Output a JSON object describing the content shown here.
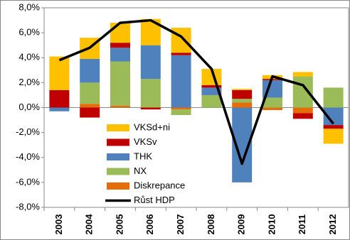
{
  "chart_data": {
    "type": "bar",
    "stacked": true,
    "categories": [
      "2003",
      "2004",
      "2005",
      "2006",
      "2007",
      "2008",
      "2009",
      "2010",
      "2011",
      "2012"
    ],
    "series": [
      {
        "name": "VKSd+ni",
        "color": "#FFC000",
        "values": [
          2.7,
          1.7,
          1.6,
          2.1,
          2.0,
          1.3,
          0.1,
          0.3,
          0.35,
          -1.2
        ]
      },
      {
        "name": "VKSv",
        "color": "#C00000",
        "values": [
          1.4,
          -0.8,
          0.4,
          -0.15,
          0.2,
          0.2,
          0.7,
          0.1,
          -0.45,
          -0.3
        ]
      },
      {
        "name": "THK",
        "color": "#4F81BD",
        "values": [
          -0.3,
          1.9,
          1.1,
          2.7,
          4.2,
          0.6,
          -6.0,
          1.4,
          0.0,
          -1.4
        ]
      },
      {
        "name": "NX",
        "color": "#9BBB59",
        "values": [
          0.0,
          1.7,
          3.55,
          2.3,
          -0.45,
          1.0,
          0.3,
          0.8,
          2.5,
          1.6
        ]
      },
      {
        "name": "Diskrepance",
        "color": "#E46C0A",
        "values": [
          0.0,
          0.3,
          0.15,
          0.0,
          -0.15,
          0.0,
          0.4,
          -0.2,
          -0.45,
          0.0
        ]
      },
      {
        "name": "Růst HDP",
        "color": "#000000",
        "type": "line",
        "values": [
          3.8,
          4.8,
          6.8,
          7.0,
          5.7,
          3.1,
          -4.5,
          2.5,
          1.8,
          -1.3
        ]
      }
    ],
    "ylim": [
      -8,
      8
    ],
    "yticks": [
      {
        "value": -8,
        "label": "-8,0%"
      },
      {
        "value": -6,
        "label": "-6,0%"
      },
      {
        "value": -4,
        "label": "-4,0%"
      },
      {
        "value": -2,
        "label": "-2,0%"
      },
      {
        "value": 0,
        "label": "0,0%"
      },
      {
        "value": 2,
        "label": "2,0%"
      },
      {
        "value": 4,
        "label": "4,0%"
      },
      {
        "value": 6,
        "label": "6,0%"
      },
      {
        "value": 8,
        "label": "8,0%"
      }
    ],
    "legend": "lower left"
  }
}
